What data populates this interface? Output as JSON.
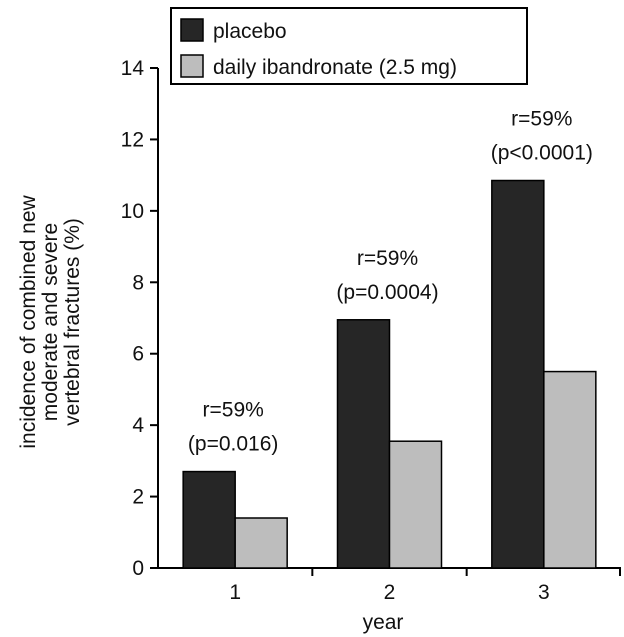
{
  "chart_data": {
    "type": "bar",
    "categories": [
      "1",
      "2",
      "3"
    ],
    "series": [
      {
        "name": "placebo",
        "values": [
          2.7,
          6.95,
          10.85
        ],
        "color": "#262626"
      },
      {
        "name": "daily ibandronate (2.5 mg)",
        "values": [
          1.4,
          3.55,
          5.5
        ],
        "color": "#bdbdbd"
      }
    ],
    "xlabel": "year",
    "ylabel_lines": [
      "incidence of combined new",
      "moderate and severe",
      "vertebral fractures (%)"
    ],
    "ylim": [
      0,
      14
    ],
    "yticks": [
      0,
      2,
      4,
      6,
      8,
      10,
      12,
      14
    ],
    "grid": false,
    "legend_position": "top",
    "annotations": [
      {
        "category": "1",
        "line1": "r=59%",
        "line2": "(p=0.016)"
      },
      {
        "category": "2",
        "line1": "r=59%",
        "line2": "(p=0.0004)"
      },
      {
        "category": "3",
        "line1": "r=59%",
        "line2": "(p<0.0001)"
      }
    ]
  }
}
